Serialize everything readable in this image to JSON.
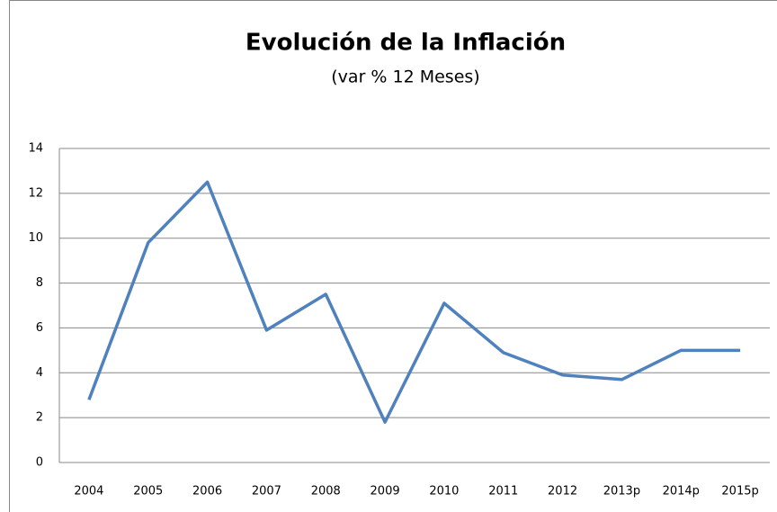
{
  "chart_data": {
    "type": "line",
    "title": "Evolución de la Inflación",
    "subtitle": "(var % 12 Meses)",
    "categories": [
      "2004",
      "2005",
      "2006",
      "2007",
      "2008",
      "2009",
      "2010",
      "2011",
      "2012",
      "2013p",
      "2014p",
      "2015p"
    ],
    "series": [
      {
        "name": "Inflación",
        "color": "#4f81bd",
        "values": [
          2.8,
          9.8,
          12.5,
          5.9,
          7.5,
          1.8,
          7.1,
          4.9,
          3.9,
          3.7,
          5.0,
          5.0
        ]
      }
    ],
    "ylim": [
      0,
      14
    ],
    "yticks": [
      0,
      2,
      4,
      6,
      8,
      10,
      12,
      14
    ],
    "grid": true
  }
}
